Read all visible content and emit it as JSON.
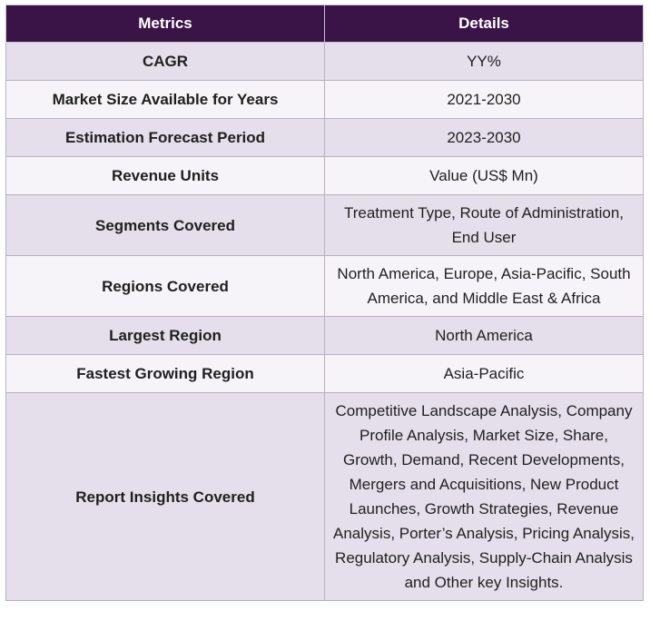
{
  "table": {
    "headers": [
      "Metrics",
      "Details"
    ],
    "rows": [
      {
        "metric": "CAGR",
        "details": "YY%"
      },
      {
        "metric": "Market Size Available for Years",
        "details": "2021-2030"
      },
      {
        "metric": "Estimation Forecast Period",
        "details": "2023-2030"
      },
      {
        "metric": "Revenue Units",
        "details": "Value (US$ Mn)"
      },
      {
        "metric": "Segments Covered",
        "details": "Treatment Type, Route of Administration, End User"
      },
      {
        "metric": "Regions Covered",
        "details": "North America, Europe, Asia-Pacific, South America, and Middle East & Africa"
      },
      {
        "metric": "Largest Region",
        "details": "North America"
      },
      {
        "metric": "Fastest Growing Region",
        "details": "Asia-Pacific"
      },
      {
        "metric": "Report Insights Covered",
        "details": "Competitive Landscape Analysis, Company Profile Analysis, Market Size, Share, Growth, Demand, Recent Developments, Mergers and Acquisitions, New Product Launches, Growth Strategies, Revenue Analysis, Porter’s Analysis, Pricing Analysis, Regulatory Analysis, Supply-Chain Analysis and Other key Insights."
      }
    ]
  }
}
